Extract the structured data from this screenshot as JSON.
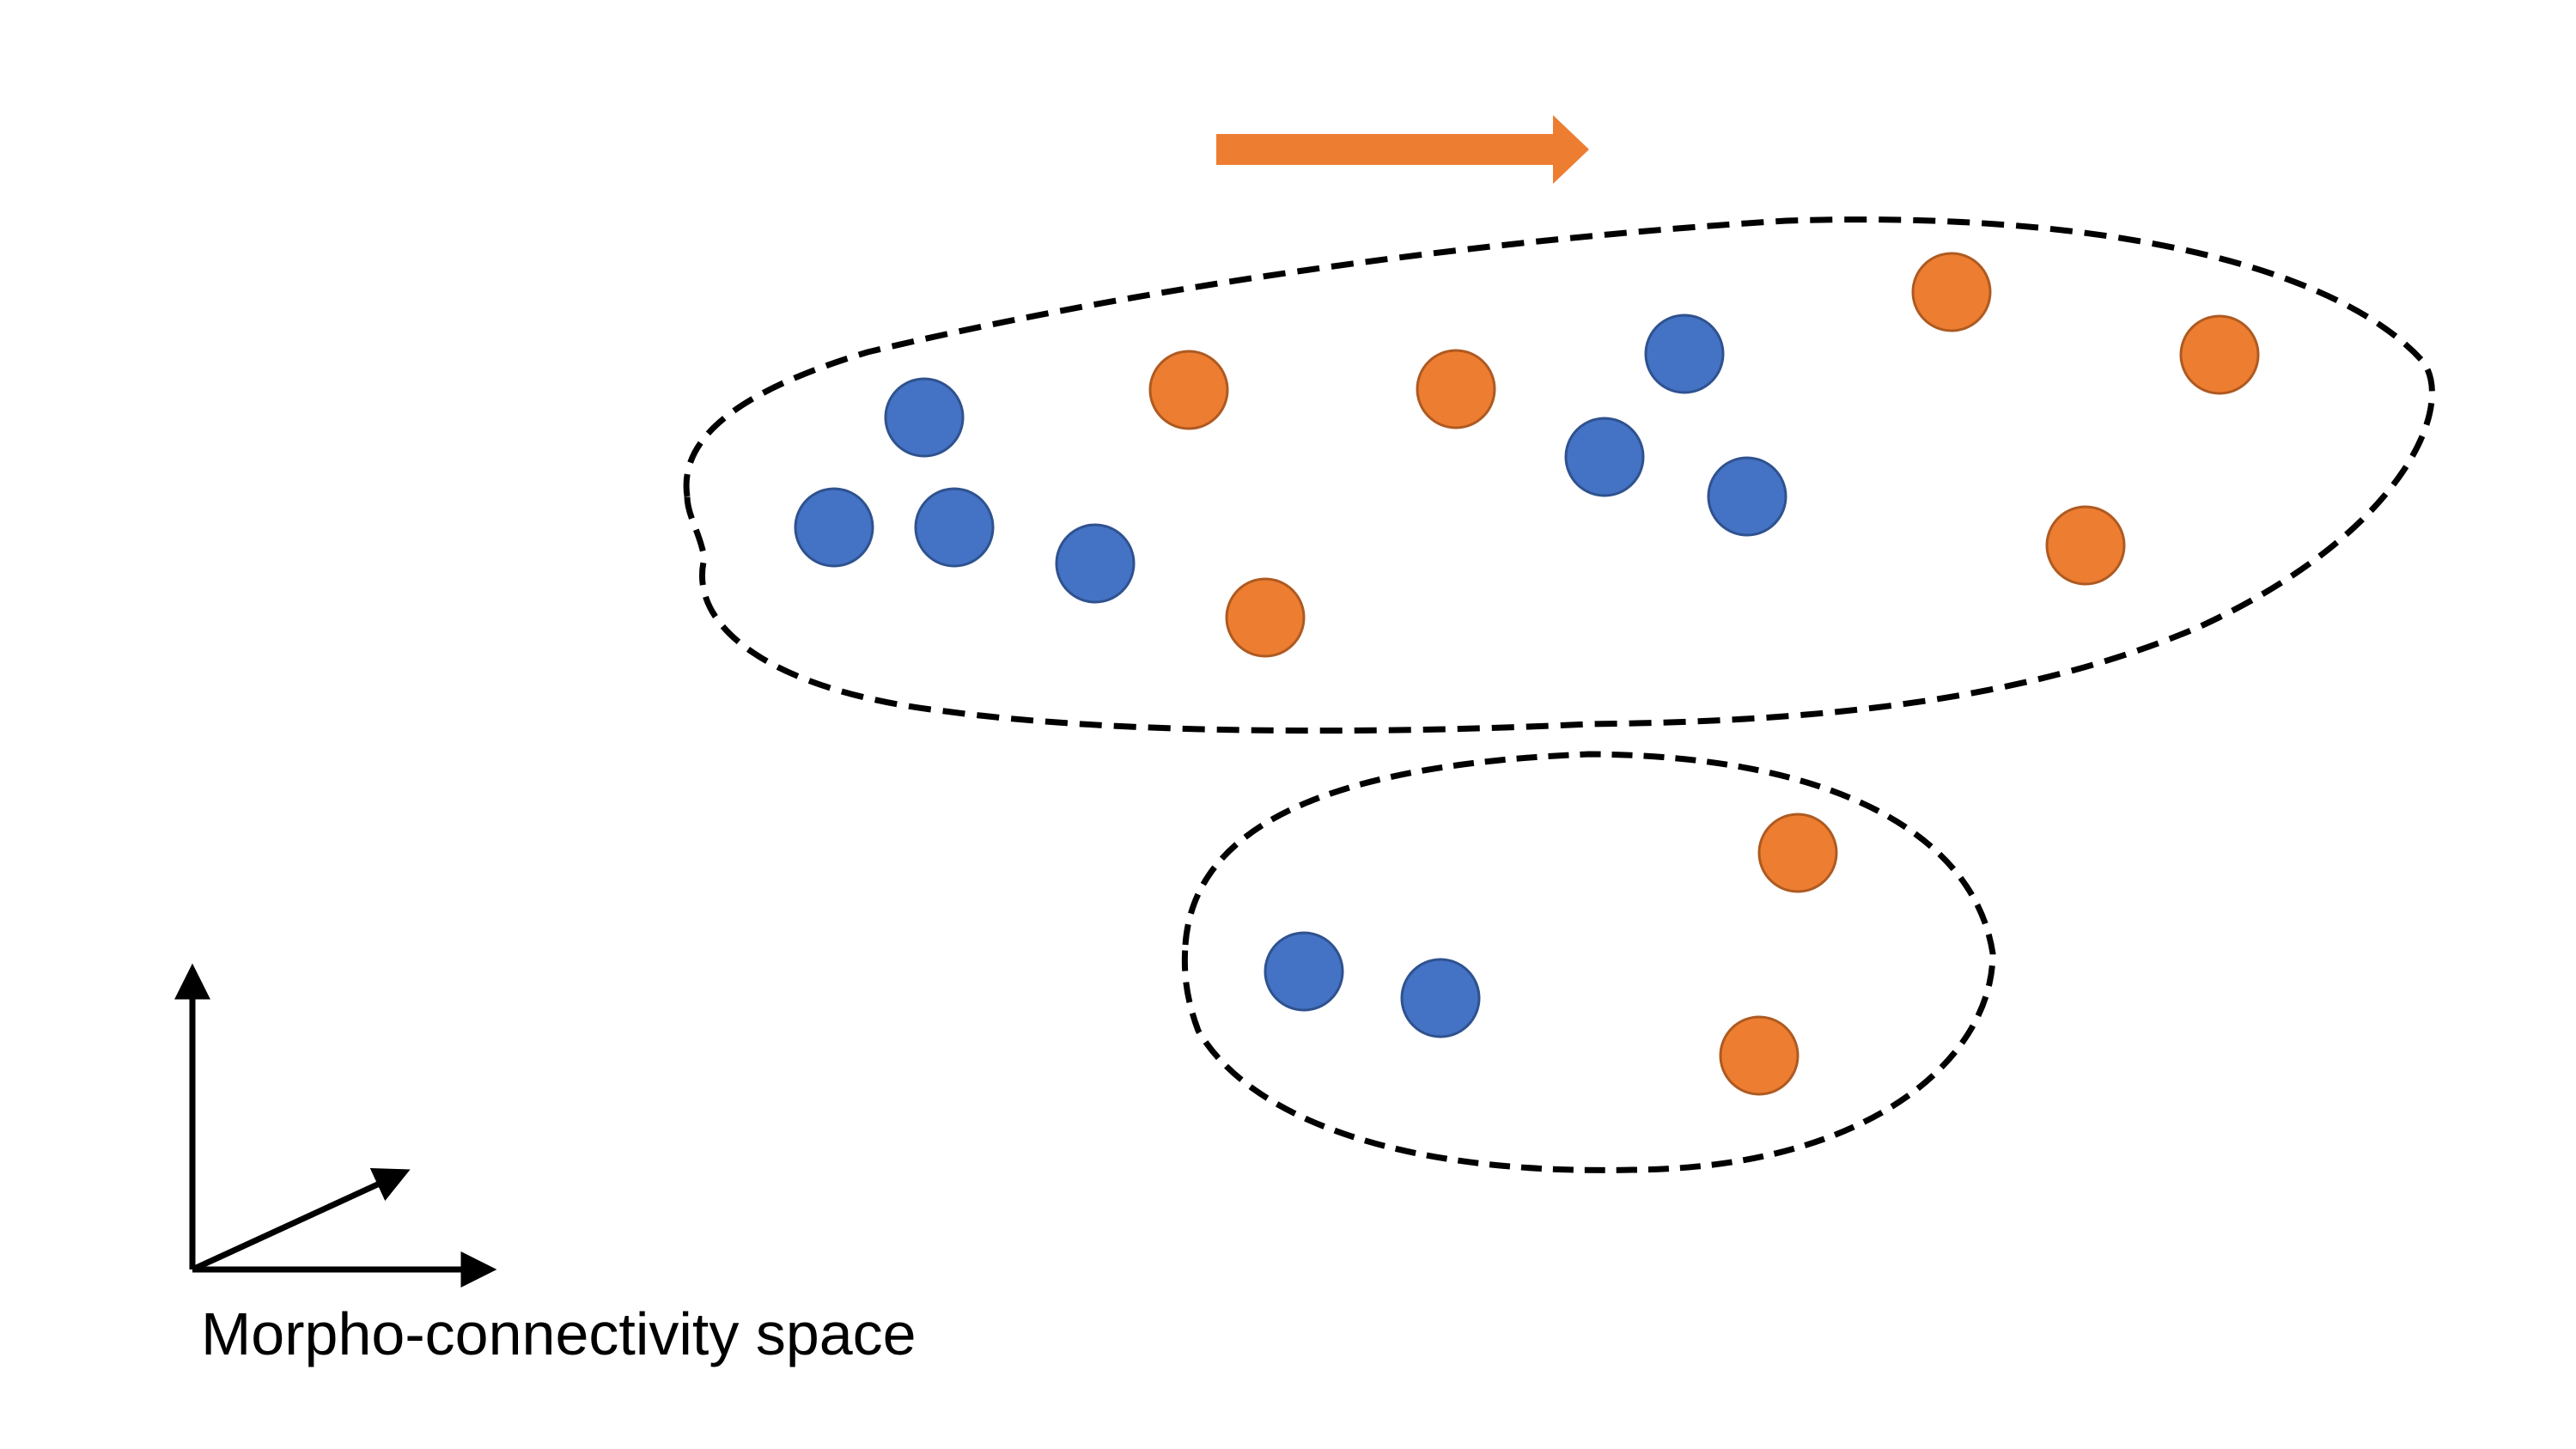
{
  "caption": "Morpho-connectivity space",
  "colors": {
    "blue_fill": "#4472C4",
    "blue_stroke": "#2F528F",
    "orange_fill": "#ED7D31",
    "orange_stroke": "#AE5A21",
    "arrow": "#ED7D31",
    "outline": "#000000"
  },
  "clusters": [
    {
      "name": "large-cluster",
      "points": [
        {
          "color": "blue"
        },
        {
          "color": "blue"
        },
        {
          "color": "blue"
        },
        {
          "color": "blue"
        },
        {
          "color": "blue"
        },
        {
          "color": "blue"
        },
        {
          "color": "blue"
        },
        {
          "color": "orange"
        },
        {
          "color": "orange"
        },
        {
          "color": "orange"
        },
        {
          "color": "orange"
        },
        {
          "color": "orange"
        },
        {
          "color": "orange"
        }
      ]
    },
    {
      "name": "small-cluster",
      "points": [
        {
          "color": "blue"
        },
        {
          "color": "blue"
        },
        {
          "color": "orange"
        },
        {
          "color": "orange"
        }
      ]
    }
  ]
}
